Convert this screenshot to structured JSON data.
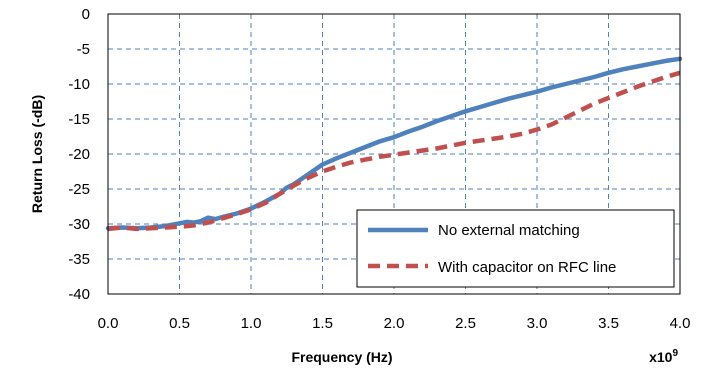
{
  "chart_data": {
    "type": "line",
    "xlabel": "Frequency (Hz)",
    "ylabel": "Return Loss (-dB)",
    "x_multiplier_label": "x10",
    "x_multiplier_exponent": "9",
    "xlim": [
      0.0,
      4.0
    ],
    "ylim": [
      -40,
      0
    ],
    "x_ticks": [
      "0.0",
      "0.5",
      "1.0",
      "1.5",
      "2.0",
      "2.5",
      "3.0",
      "3.5",
      "4.0"
    ],
    "y_ticks": [
      "0",
      "-5",
      "-10",
      "-15",
      "-20",
      "-25",
      "-30",
      "-35",
      "-40"
    ],
    "grid": true,
    "legend_position": "bottom-right",
    "series": [
      {
        "name": "No external matching",
        "color": "#4f81bd",
        "style": "solid",
        "points": [
          [
            0.0,
            -30.6
          ],
          [
            0.1,
            -30.5
          ],
          [
            0.2,
            -30.6
          ],
          [
            0.3,
            -30.5
          ],
          [
            0.4,
            -30.3
          ],
          [
            0.5,
            -29.9
          ],
          [
            0.55,
            -29.7
          ],
          [
            0.6,
            -29.8
          ],
          [
            0.65,
            -29.6
          ],
          [
            0.7,
            -29.1
          ],
          [
            0.75,
            -29.3
          ],
          [
            0.8,
            -29.0
          ],
          [
            0.9,
            -28.5
          ],
          [
            1.0,
            -27.8
          ],
          [
            1.1,
            -26.8
          ],
          [
            1.2,
            -25.7
          ],
          [
            1.25,
            -24.8
          ],
          [
            1.3,
            -24.3
          ],
          [
            1.4,
            -22.9
          ],
          [
            1.5,
            -21.5
          ],
          [
            1.6,
            -20.6
          ],
          [
            1.7,
            -19.8
          ],
          [
            1.8,
            -19.0
          ],
          [
            1.9,
            -18.2
          ],
          [
            2.0,
            -17.6
          ],
          [
            2.1,
            -16.8
          ],
          [
            2.2,
            -16.1
          ],
          [
            2.3,
            -15.3
          ],
          [
            2.4,
            -14.6
          ],
          [
            2.5,
            -13.9
          ],
          [
            2.6,
            -13.3
          ],
          [
            2.7,
            -12.7
          ],
          [
            2.8,
            -12.1
          ],
          [
            2.9,
            -11.6
          ],
          [
            3.0,
            -11.1
          ],
          [
            3.1,
            -10.5
          ],
          [
            3.2,
            -10.0
          ],
          [
            3.3,
            -9.5
          ],
          [
            3.4,
            -9.0
          ],
          [
            3.5,
            -8.4
          ],
          [
            3.6,
            -7.9
          ],
          [
            3.7,
            -7.5
          ],
          [
            3.8,
            -7.1
          ],
          [
            3.9,
            -6.7
          ],
          [
            4.0,
            -6.4
          ]
        ]
      },
      {
        "name": "With capacitor on RFC line",
        "color": "#c0504d",
        "style": "dashed",
        "points": [
          [
            0.0,
            -30.7
          ],
          [
            0.1,
            -30.5
          ],
          [
            0.2,
            -30.7
          ],
          [
            0.3,
            -30.6
          ],
          [
            0.4,
            -30.5
          ],
          [
            0.5,
            -30.4
          ],
          [
            0.6,
            -30.2
          ],
          [
            0.7,
            -29.8
          ],
          [
            0.8,
            -29.2
          ],
          [
            0.9,
            -28.6
          ],
          [
            1.0,
            -27.9
          ],
          [
            1.1,
            -27.0
          ],
          [
            1.2,
            -25.7
          ],
          [
            1.3,
            -24.5
          ],
          [
            1.4,
            -23.4
          ],
          [
            1.5,
            -22.5
          ],
          [
            1.6,
            -21.8
          ],
          [
            1.7,
            -21.2
          ],
          [
            1.8,
            -20.8
          ],
          [
            1.9,
            -20.4
          ],
          [
            2.0,
            -20.1
          ],
          [
            2.1,
            -19.8
          ],
          [
            2.2,
            -19.5
          ],
          [
            2.3,
            -19.2
          ],
          [
            2.4,
            -18.8
          ],
          [
            2.5,
            -18.4
          ],
          [
            2.6,
            -18.1
          ],
          [
            2.7,
            -17.8
          ],
          [
            2.8,
            -17.5
          ],
          [
            2.9,
            -17.1
          ],
          [
            3.0,
            -16.5
          ],
          [
            3.1,
            -15.8
          ],
          [
            3.2,
            -14.8
          ],
          [
            3.3,
            -13.8
          ],
          [
            3.4,
            -12.8
          ],
          [
            3.5,
            -12.0
          ],
          [
            3.6,
            -11.2
          ],
          [
            3.7,
            -10.4
          ],
          [
            3.8,
            -9.7
          ],
          [
            3.9,
            -9.0
          ],
          [
            4.0,
            -8.4
          ]
        ]
      }
    ]
  }
}
